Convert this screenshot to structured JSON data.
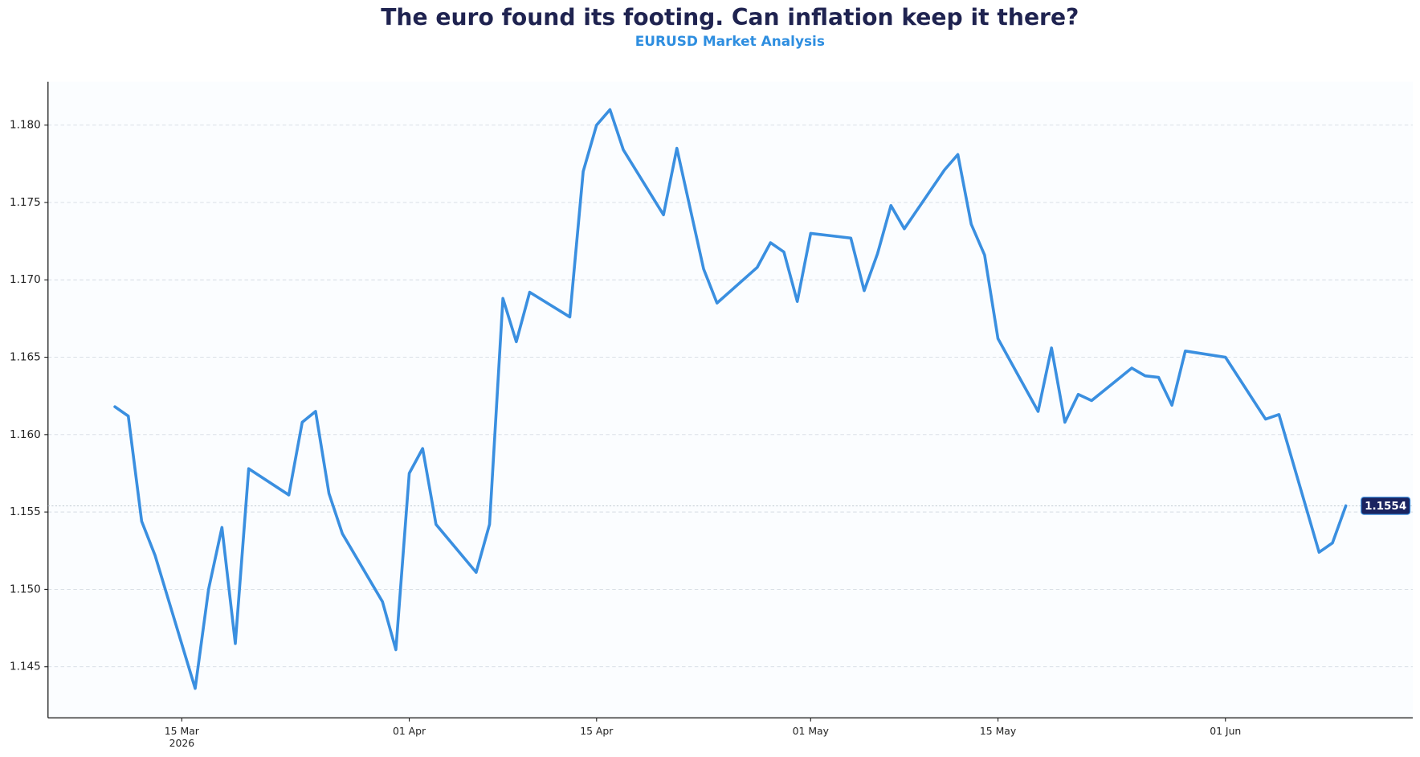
{
  "chart_data": {
    "type": "line",
    "title": "The euro found its footing. Can inflation keep it there?",
    "subtitle": "EURUSD Market Analysis",
    "color": "#3a8fe0",
    "x": [
      "2026-03-10",
      "2026-03-11",
      "2026-03-12",
      "2026-03-13",
      "2026-03-16",
      "2026-03-17",
      "2026-03-18",
      "2026-03-19",
      "2026-03-20",
      "2026-03-23",
      "2026-03-24",
      "2026-03-25",
      "2026-03-26",
      "2026-03-27",
      "2026-03-30",
      "2026-03-31",
      "2026-04-01",
      "2026-04-02",
      "2026-04-03",
      "2026-04-06",
      "2026-04-07",
      "2026-04-08",
      "2026-04-09",
      "2026-04-10",
      "2026-04-13",
      "2026-04-14",
      "2026-04-15",
      "2026-04-16",
      "2026-04-17",
      "2026-04-20",
      "2026-04-21",
      "2026-04-23",
      "2026-04-24",
      "2026-04-27",
      "2026-04-28",
      "2026-04-29",
      "2026-04-30",
      "2026-05-01",
      "2026-05-04",
      "2026-05-05",
      "2026-05-06",
      "2026-05-07",
      "2026-05-08",
      "2026-05-11",
      "2026-05-12",
      "2026-05-13",
      "2026-05-14",
      "2026-05-15",
      "2026-05-18",
      "2026-05-19",
      "2026-05-20",
      "2026-05-21",
      "2026-05-22",
      "2026-05-25",
      "2026-05-26",
      "2026-05-27",
      "2026-05-28",
      "2026-05-29",
      "2026-06-01",
      "2026-06-04",
      "2026-06-05",
      "2026-06-08",
      "2026-06-09",
      "2026-06-10"
    ],
    "values": [
      1.1618,
      1.1612,
      1.1544,
      1.1522,
      1.1436,
      1.15,
      1.154,
      1.1465,
      1.1578,
      1.1561,
      1.1608,
      1.1615,
      1.1562,
      1.1536,
      1.1492,
      1.1461,
      1.1575,
      1.1591,
      1.1542,
      1.1511,
      1.1542,
      1.1688,
      1.166,
      1.1692,
      1.1676,
      1.177,
      1.18,
      1.181,
      1.1784,
      1.1742,
      1.1785,
      1.1707,
      1.1685,
      1.1708,
      1.1724,
      1.1718,
      1.1686,
      1.173,
      1.1727,
      1.1693,
      1.1717,
      1.1748,
      1.1733,
      1.1771,
      1.1781,
      1.1736,
      1.1716,
      1.1662,
      1.1615,
      1.1656,
      1.1608,
      1.1626,
      1.1622,
      1.1643,
      1.1638,
      1.1637,
      1.1619,
      1.1654,
      1.165,
      1.161,
      1.1613,
      1.1524,
      1.153,
      1.1554
    ],
    "xlim": [
      "2026-03-05",
      "2026-06-15"
    ],
    "xticks": [
      {
        "value": "2026-03-15",
        "label": "15 Mar\n2026"
      },
      {
        "value": "2026-04-01",
        "label": "01 Apr"
      },
      {
        "value": "2026-04-15",
        "label": "15 Apr"
      },
      {
        "value": "2026-05-01",
        "label": "01 May"
      },
      {
        "value": "2026-05-15",
        "label": "15 May"
      },
      {
        "value": "2026-06-01",
        "label": "01 Jun"
      }
    ],
    "ylim": [
      1.1417,
      1.1828
    ],
    "yticks": [
      1.145,
      {
        "value": 1.15,
        "label": "1.150"
      },
      1.155,
      {
        "value": 1.16,
        "label": "1.160"
      },
      1.165,
      {
        "value": 1.17,
        "label": "1.170"
      },
      1.175,
      {
        "value": 1.18,
        "label": "1.180"
      }
    ],
    "grid": true
  }
}
